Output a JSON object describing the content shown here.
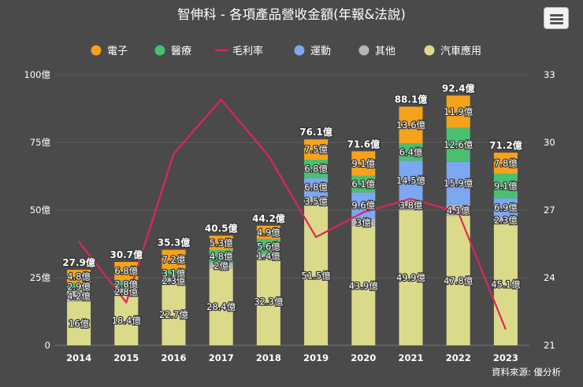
{
  "chart_data": {
    "type": "bar",
    "title": "智伸科 - 各項產品營收金額(年報&法說)",
    "source_note": "資料來源: 優分析",
    "categories": [
      "2014",
      "2015",
      "2016",
      "2017",
      "2018",
      "2019",
      "2020",
      "2021",
      "2022",
      "2023"
    ],
    "y_left": {
      "min": 0,
      "max": 100,
      "ticks": [
        "0",
        "25億",
        "50億",
        "75億",
        "100億"
      ]
    },
    "y_right": {
      "min": 21,
      "max": 33,
      "ticks": [
        "21",
        "24",
        "27",
        "30",
        "33"
      ]
    },
    "unit": "億",
    "series": [
      {
        "name": "汽車應用",
        "color": "#dada8a",
        "values": [
          16,
          18.4,
          22.7,
          28.4,
          32.3,
          51.5,
          43.9,
          49.9,
          47.8,
          45.1
        ]
      },
      {
        "name": "其他",
        "color": "#b5b5b5",
        "values": [
          4.2,
          2.8,
          2.3,
          2,
          1.4,
          3.5,
          3,
          3.8,
          4.1,
          2.3
        ]
      },
      {
        "name": "運動",
        "color": "#7da7f0",
        "values": [
          0,
          0,
          0,
          0,
          0,
          6.8,
          9.6,
          14.5,
          15.9,
          6.9
        ]
      },
      {
        "name": "醫療",
        "color": "#49c070",
        "values": [
          2.9,
          2.8,
          3.1,
          4.8,
          5.6,
          6.8,
          6.1,
          6.4,
          12.6,
          9.1
        ]
      },
      {
        "name": "電子",
        "color": "#f7a21c",
        "values": [
          4.8,
          6.8,
          7.2,
          5.3,
          4.9,
          7.5,
          9.1,
          13.6,
          11.9,
          7.8
        ]
      }
    ],
    "value_labels": [
      [
        "16億",
        "4.2億",
        "",
        "2.9億",
        "4.8億"
      ],
      [
        "18.4億",
        "2.8億",
        "",
        "2.8億",
        "6.8億"
      ],
      [
        "22.7億",
        "2.3億",
        "",
        "3.1億",
        "7.2億"
      ],
      [
        "28.4億",
        "2億",
        "",
        "4.8億",
        "5.3億"
      ],
      [
        "32.3億",
        "1.4億",
        "",
        "5.6億",
        "4.9億"
      ],
      [
        "51.5億",
        "3.5億",
        "6.8億",
        "6.8億",
        "7.5億"
      ],
      [
        "43.9億",
        "3億",
        "9.6億",
        "6.1億",
        "9.1億"
      ],
      [
        "49.9億",
        "3.8億",
        "14.5億",
        "6.4億",
        "13.6億"
      ],
      [
        "47.8億",
        "4.1億",
        "15.9億",
        "12.6億",
        "11.9億"
      ],
      [
        "45.1億",
        "2.3億",
        "6.9億",
        "9.1億",
        "7.8億"
      ]
    ],
    "totals": [
      "27.9億",
      "30.7億",
      "35.3億",
      "40.5億",
      "44.2億",
      "76.1億",
      "71.6億",
      "88.1億",
      "92.4億",
      "71.2億"
    ],
    "line_series": {
      "name": "毛利率",
      "color": "#e0245e",
      "axis": "right",
      "values": [
        25.6,
        22.9,
        29.5,
        31.9,
        29.4,
        25.8,
        26.9,
        27.5,
        26.9,
        21.7
      ]
    },
    "legend": {
      "position": "top",
      "items": [
        {
          "name": "電子",
          "color": "#f7a21c",
          "symbol": "dot"
        },
        {
          "name": "醫療",
          "color": "#49c070",
          "symbol": "dot"
        },
        {
          "name": "毛利率",
          "color": "#e0245e",
          "symbol": "line"
        },
        {
          "name": "運動",
          "color": "#7da7f0",
          "symbol": "dot"
        },
        {
          "name": "其他",
          "color": "#b5b5b5",
          "symbol": "dot"
        },
        {
          "name": "汽車應用",
          "color": "#dada8a",
          "symbol": "dot"
        }
      ]
    },
    "grid": true
  }
}
